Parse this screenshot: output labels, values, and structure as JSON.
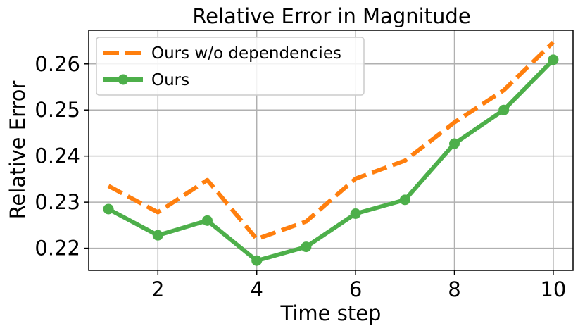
{
  "chart_data": {
    "type": "line",
    "title": "Relative Error in Magnitude",
    "xlabel": "Time step",
    "ylabel": "Relative Error",
    "x": [
      1,
      2,
      3,
      4,
      5,
      6,
      7,
      8,
      9,
      10
    ],
    "xlim": [
      0.6,
      10.4
    ],
    "ylim": [
      0.2152,
      0.2673
    ],
    "xticks": [
      2,
      4,
      6,
      8,
      10
    ],
    "yticks": [
      0.22,
      0.23,
      0.24,
      0.25,
      0.26
    ],
    "xtick_labels": [
      "2",
      "4",
      "6",
      "8",
      "10"
    ],
    "ytick_labels": [
      "0.22",
      "0.23",
      "0.24",
      "0.25",
      "0.26"
    ],
    "grid": true,
    "legend_position": "top-left",
    "series": [
      {
        "name": "Ours w/o dependencies",
        "values": [
          0.2335,
          0.2278,
          0.2348,
          0.222,
          0.2258,
          0.2351,
          0.239,
          0.2473,
          0.2543,
          0.2647
        ],
        "color": "#ff7f0e",
        "style": "dashed",
        "marker": "none"
      },
      {
        "name": "Ours",
        "values": [
          0.2285,
          0.2228,
          0.226,
          0.2173,
          0.2203,
          0.2275,
          0.2305,
          0.2427,
          0.25,
          0.2609
        ],
        "color": "#4daf4a",
        "style": "solid",
        "marker": "circle"
      }
    ]
  }
}
